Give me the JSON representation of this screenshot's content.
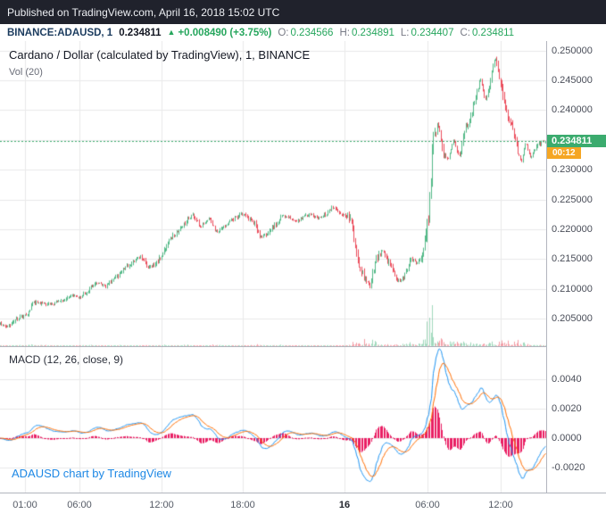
{
  "published_bar": {
    "text": "Published on TradingView.com, April 16, 2018 15:02 UTC"
  },
  "symbol_bar": {
    "symbol": "BINANCE:ADAUSD, 1",
    "price": "0.234811",
    "arrow_up": "▲",
    "change": "+0.008490 (+3.75%)",
    "ohlc": [
      {
        "label": "O:",
        "value": "0.234566"
      },
      {
        "label": "H:",
        "value": "0.234891"
      },
      {
        "label": "L:",
        "value": "0.234407"
      },
      {
        "label": "C:",
        "value": "0.234811"
      }
    ]
  },
  "main_pane": {
    "legend_title": "Cardano / Dollar (calculated by TradingView), 1, BINANCE",
    "legend_vol": "Vol (20)"
  },
  "macd_pane": {
    "legend": "MACD (12, 26, close, 9)"
  },
  "attribution": "ADAUSD chart by TradingView",
  "price_axis": {
    "labels": [
      "0.250000",
      "0.245000",
      "0.240000",
      "0.235000",
      "0.230000",
      "0.225000",
      "0.220000",
      "0.215000",
      "0.210000",
      "0.205000"
    ],
    "last_label": "0.234811",
    "countdown": "00:12"
  },
  "macd_axis": {
    "labels": [
      "0.0040",
      "0.0020",
      "0.0000",
      "-0.0020"
    ]
  },
  "colors": {
    "published_bg": "#20222c",
    "up": "#53b987",
    "down": "#eb4d5c",
    "vol_up": "rgba(83,185,135,0.55)",
    "vol_down": "rgba(235,77,92,0.55)",
    "grid": "#e9e9ea",
    "divider": "#b2b5be",
    "price_line": "#3bab6e",
    "price_badge_bg": "#3bab6e",
    "countdown_bg": "#f5a623",
    "macd_line": "#2196f3",
    "signal_line": "#ff6d00",
    "histogram": "#e91e63",
    "accent_green": "#26a65d",
    "attribution_blue": "#1e88e5"
  },
  "chart_data": [
    {
      "type": "candlestick",
      "symbol": "BINANCE:ADAUSD",
      "exchange": "BINANCE",
      "interval": "1",
      "title": "Cardano / Dollar (calculated by TradingView), 1, BINANCE",
      "last_bar": {
        "open": 0.234566,
        "high": 0.234891,
        "low": 0.234407,
        "close": 0.234811
      },
      "change_abs": 0.00849,
      "change_pct": 3.75,
      "ylim": [
        0.2004,
        0.2516
      ],
      "y_tick_values": [
        0.25,
        0.245,
        0.24,
        0.235,
        0.23,
        0.225,
        0.22,
        0.215,
        0.21,
        0.205
      ],
      "x_ticks": [
        {
          "label": "01:00",
          "t": 0.045
        },
        {
          "label": "06:00",
          "t": 0.145
        },
        {
          "label": "12:00",
          "t": 0.295
        },
        {
          "label": "18:00",
          "t": 0.445
        },
        {
          "label": "16",
          "t": 0.63,
          "is_day": true
        },
        {
          "label": "06:00",
          "t": 0.782
        },
        {
          "label": "12:00",
          "t": 0.916
        }
      ],
      "price_path": [
        [
          0.0,
          0.2042
        ],
        [
          0.012,
          0.2036
        ],
        [
          0.03,
          0.205
        ],
        [
          0.05,
          0.2058
        ],
        [
          0.062,
          0.2078
        ],
        [
          0.085,
          0.2074
        ],
        [
          0.11,
          0.2078
        ],
        [
          0.13,
          0.209
        ],
        [
          0.148,
          0.2085
        ],
        [
          0.162,
          0.21
        ],
        [
          0.175,
          0.2112
        ],
        [
          0.195,
          0.2105
        ],
        [
          0.215,
          0.2122
        ],
        [
          0.235,
          0.214
        ],
        [
          0.258,
          0.2155
        ],
        [
          0.272,
          0.2135
        ],
        [
          0.288,
          0.2142
        ],
        [
          0.308,
          0.218
        ],
        [
          0.33,
          0.22
        ],
        [
          0.352,
          0.2225
        ],
        [
          0.368,
          0.2205
        ],
        [
          0.383,
          0.2218
        ],
        [
          0.398,
          0.2195
        ],
        [
          0.418,
          0.2212
        ],
        [
          0.443,
          0.2226
        ],
        [
          0.462,
          0.2216
        ],
        [
          0.478,
          0.2186
        ],
        [
          0.498,
          0.22
        ],
        [
          0.518,
          0.2224
        ],
        [
          0.543,
          0.2214
        ],
        [
          0.568,
          0.2226
        ],
        [
          0.588,
          0.2218
        ],
        [
          0.608,
          0.2236
        ],
        [
          0.625,
          0.2228
        ],
        [
          0.643,
          0.222
        ],
        [
          0.655,
          0.215
        ],
        [
          0.668,
          0.212
        ],
        [
          0.678,
          0.2105
        ],
        [
          0.69,
          0.215
        ],
        [
          0.702,
          0.2165
        ],
        [
          0.715,
          0.214
        ],
        [
          0.728,
          0.2113
        ],
        [
          0.742,
          0.212
        ],
        [
          0.753,
          0.215
        ],
        [
          0.765,
          0.2143
        ],
        [
          0.778,
          0.216
        ],
        [
          0.786,
          0.223
        ],
        [
          0.794,
          0.2345
        ],
        [
          0.803,
          0.238
        ],
        [
          0.812,
          0.233
        ],
        [
          0.822,
          0.2316
        ],
        [
          0.832,
          0.2355
        ],
        [
          0.842,
          0.232
        ],
        [
          0.852,
          0.2366
        ],
        [
          0.862,
          0.2386
        ],
        [
          0.872,
          0.242
        ],
        [
          0.882,
          0.2455
        ],
        [
          0.89,
          0.2414
        ],
        [
          0.898,
          0.2446
        ],
        [
          0.908,
          0.2487
        ],
        [
          0.918,
          0.245
        ],
        [
          0.928,
          0.24
        ],
        [
          0.938,
          0.2374
        ],
        [
          0.948,
          0.2336
        ],
        [
          0.956,
          0.231
        ],
        [
          0.964,
          0.2346
        ],
        [
          0.974,
          0.2318
        ],
        [
          0.985,
          0.2342
        ],
        [
          1.0,
          0.234811
        ]
      ]
    },
    {
      "type": "macd",
      "title": "MACD (12, 26, close, 9)",
      "params": {
        "fast": 12,
        "slow": 26,
        "source": "close",
        "signal": 9
      },
      "ylim": [
        -0.0037,
        0.00624
      ],
      "y_tick_values": [
        0.004,
        0.002,
        0.0,
        -0.002
      ]
    }
  ]
}
